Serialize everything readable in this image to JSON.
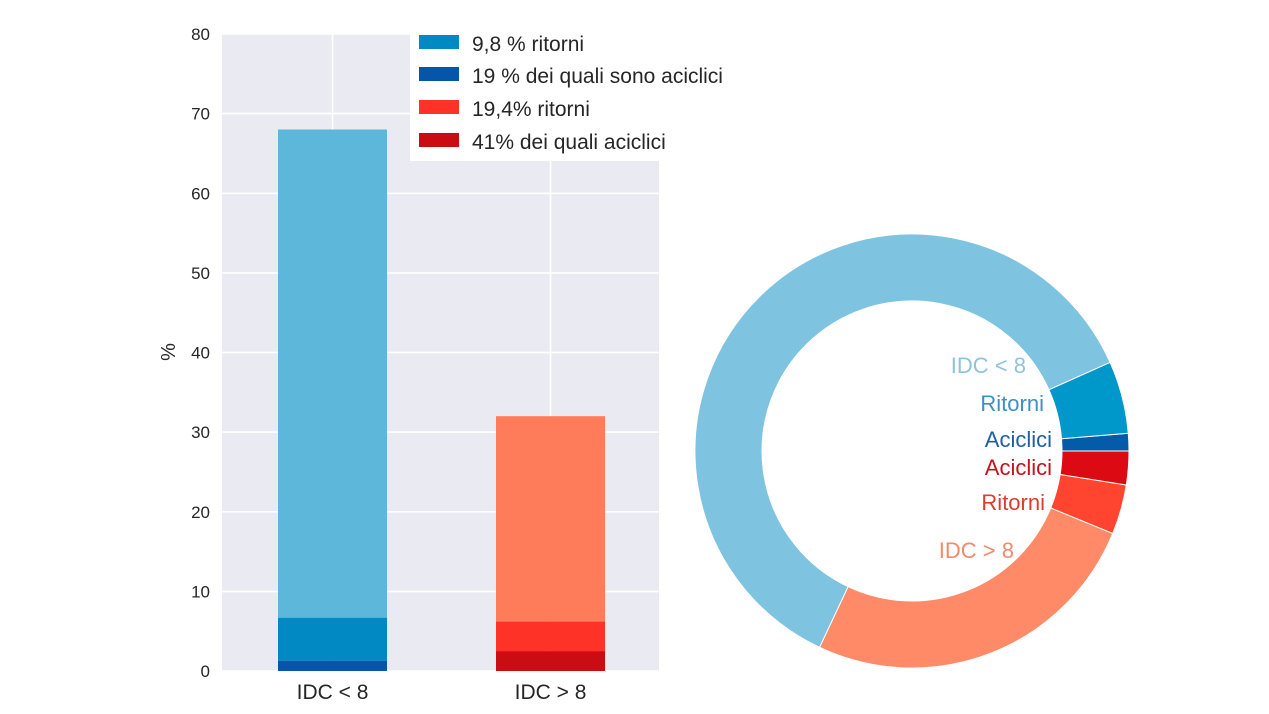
{
  "chart_data": [
    {
      "type": "bar",
      "stacked": true,
      "title": "",
      "xlabel": "",
      "ylabel": "%",
      "ylim": [
        0,
        80
      ],
      "yticks": [
        0,
        10,
        20,
        30,
        40,
        50,
        60,
        70,
        80
      ],
      "grid": true,
      "categories": [
        "IDC < 8",
        "IDC > 8"
      ],
      "totals": [
        68,
        32
      ],
      "segments": [
        {
          "category": "IDC < 8",
          "parts": [
            {
              "name": "19 % dei quali sono aciclici",
              "from": 0,
              "to": 1.3,
              "color": "#0555a8"
            },
            {
              "name": "9,8 % ritorni",
              "from": 1.3,
              "to": 6.7,
              "color": "#0089c2"
            },
            {
              "name": "IDC < 8",
              "from": 6.7,
              "to": 68,
              "color": "#5db7da"
            }
          ]
        },
        {
          "category": "IDC > 8",
          "parts": [
            {
              "name": "41% dei quali aciclici",
              "from": 0,
              "to": 2.5,
              "color": "#c90d12"
            },
            {
              "name": "19,4% ritorni",
              "from": 2.5,
              "to": 6.2,
              "color": "#fe3226"
            },
            {
              "name": "IDC > 8",
              "from": 6.2,
              "to": 32,
              "color": "#fe7c5a"
            }
          ]
        }
      ],
      "legend": {
        "position": "upper right (overlapping)",
        "entries": [
          {
            "label": "9,8 % ritorni",
            "color": "#0089c2"
          },
          {
            "label": "19 % dei quali sono aciclici",
            "color": "#0555a8"
          },
          {
            "label": "19,4% ritorni",
            "color": "#fe3226"
          },
          {
            "label": "41% dei quali aciclici",
            "color": "#c90d12"
          }
        ]
      }
    },
    {
      "type": "pie",
      "donut": true,
      "start_angle_deg": 0,
      "direction": "counterclockwise",
      "slices": [
        {
          "label": "Aciclici",
          "value": 1.3,
          "color": "#045ba8",
          "label_color": "#1f5fa5"
        },
        {
          "label": "Ritorni",
          "value": 5.4,
          "color": "#0098cb",
          "label_color": "#3d8fc4"
        },
        {
          "label": "IDC < 8",
          "value": 61.3,
          "color": "#7ec3df",
          "label_color": "#8fc3dd"
        },
        {
          "label": "IDC > 8",
          "value": 25.8,
          "color": "#fe8a68",
          "label_color": "#f08a6c"
        },
        {
          "label": "Ritorni",
          "value": 3.7,
          "color": "#ff4430",
          "label_color": "#dc3e2c"
        },
        {
          "label": "Aciclici",
          "value": 2.5,
          "color": "#dc0a13",
          "label_color": "#c6101a"
        }
      ]
    }
  ],
  "bar": {
    "ylabel": "%",
    "yticks": [
      "0",
      "10",
      "20",
      "30",
      "40",
      "50",
      "60",
      "70",
      "80"
    ],
    "xticks": [
      "IDC < 8",
      "IDC > 8"
    ]
  },
  "legend": [
    "9,8 % ritorni",
    "19 % dei quali sono aciclici",
    "19,4% ritorni",
    "41% dei quali aciclici"
  ],
  "donut": {
    "labels": [
      "IDC < 8",
      "Ritorni",
      "Aciclici",
      "Aciclici",
      "Ritorni",
      "IDC > 8"
    ]
  }
}
